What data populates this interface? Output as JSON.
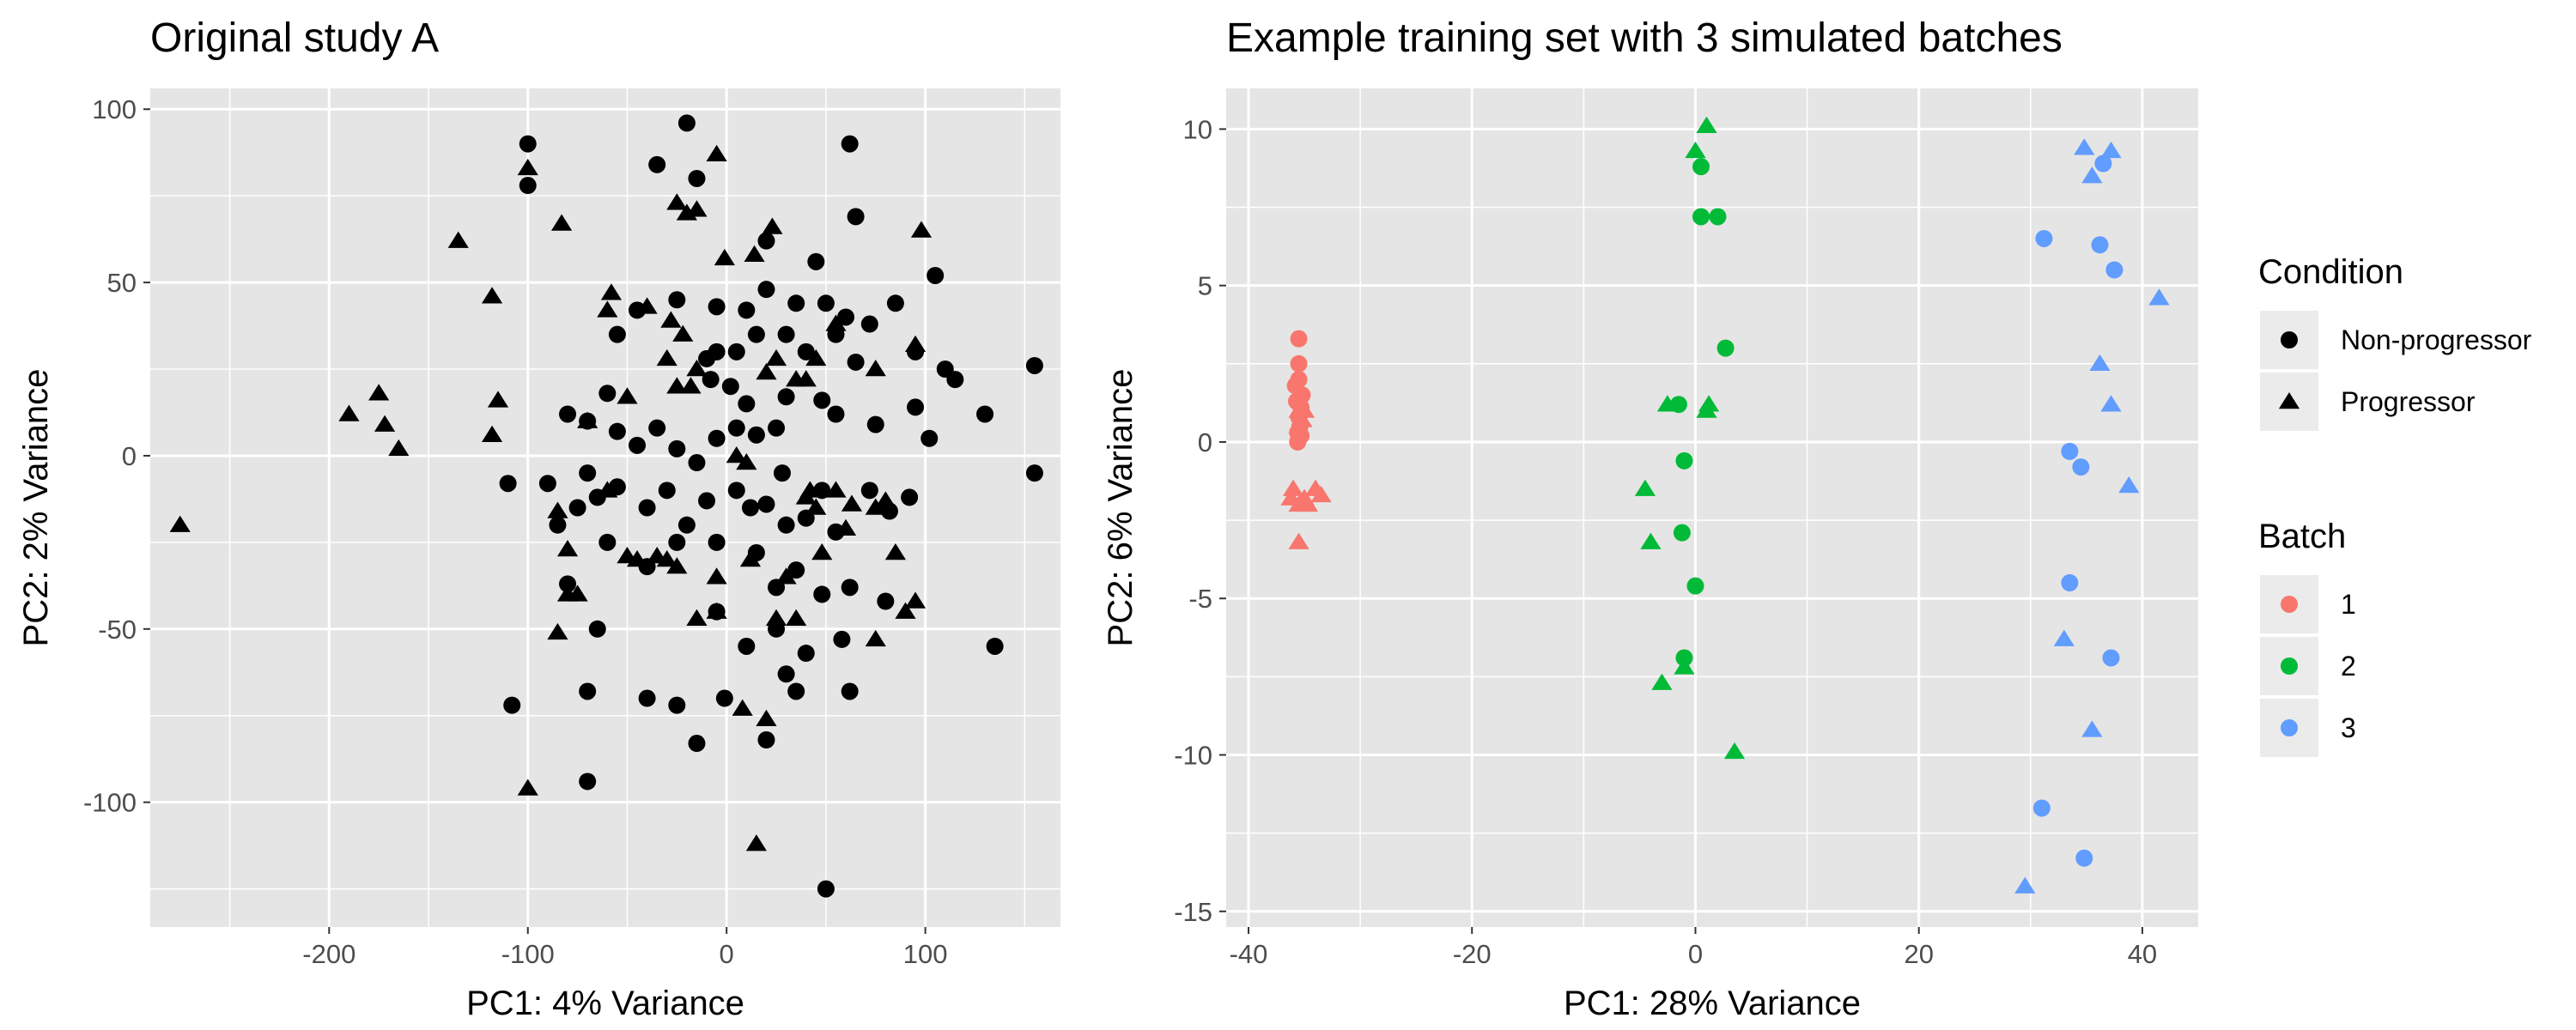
{
  "colors": {
    "panel_bg": "#e5e5e5",
    "grid": "#ffffff",
    "ink": "#000000",
    "axis_text": "#4d4d4d",
    "legend_key_bg": "#ebebeb",
    "batch_1": "#f8766d",
    "batch_2": "#00ba38",
    "batch_3": "#619cff"
  },
  "chart_data": [
    {
      "type": "scatter",
      "title": "Original study A",
      "xlabel": "PC1: 4% Variance",
      "ylabel": "PC2: 2% Variance",
      "xlim": [
        -290,
        168
      ],
      "ylim": [
        -136,
        106
      ],
      "xticks": [
        -200,
        -100,
        0,
        100
      ],
      "xtick_labels": [
        "-200",
        "-100",
        "0",
        "100"
      ],
      "yticks": [
        -100,
        -50,
        0,
        50,
        100
      ],
      "ytick_labels": [
        "-100",
        "-50",
        "0",
        "50",
        "100"
      ],
      "grid": true,
      "series": [
        {
          "shape": "circle",
          "points": [
            [
              -20,
              96
            ],
            [
              -35,
              84
            ],
            [
              -100,
              78
            ],
            [
              62,
              90
            ],
            [
              -15,
              80
            ],
            [
              65,
              69
            ],
            [
              20,
              62
            ],
            [
              45,
              56
            ],
            [
              105,
              52
            ],
            [
              -100,
              90
            ],
            [
              -55,
              35
            ],
            [
              -45,
              42
            ],
            [
              -25,
              45
            ],
            [
              -5,
              43
            ],
            [
              -10,
              28
            ],
            [
              10,
              42
            ],
            [
              20,
              48
            ],
            [
              35,
              44
            ],
            [
              50,
              44
            ],
            [
              60,
              40
            ],
            [
              72,
              38
            ],
            [
              85,
              44
            ],
            [
              15,
              35
            ],
            [
              5,
              30
            ],
            [
              -5,
              30
            ],
            [
              10,
              15
            ],
            [
              2,
              20
            ],
            [
              -8,
              22
            ],
            [
              30,
              35
            ],
            [
              40,
              30
            ],
            [
              55,
              35
            ],
            [
              65,
              27
            ],
            [
              95,
              30
            ],
            [
              110,
              25
            ],
            [
              115,
              22
            ],
            [
              130,
              12
            ],
            [
              155,
              26
            ],
            [
              -60,
              18
            ],
            [
              -70,
              10
            ],
            [
              -80,
              12
            ],
            [
              -55,
              7
            ],
            [
              -45,
              3
            ],
            [
              -35,
              8
            ],
            [
              -25,
              2
            ],
            [
              -15,
              -2
            ],
            [
              -5,
              5
            ],
            [
              5,
              8
            ],
            [
              15,
              6
            ],
            [
              25,
              8
            ],
            [
              30,
              17
            ],
            [
              48,
              16
            ],
            [
              55,
              12
            ],
            [
              75,
              9
            ],
            [
              95,
              14
            ],
            [
              102,
              5
            ],
            [
              -90,
              -8
            ],
            [
              -70,
              -5
            ],
            [
              -65,
              -12
            ],
            [
              -55,
              -9
            ],
            [
              -40,
              -15
            ],
            [
              -30,
              -10
            ],
            [
              -20,
              -20
            ],
            [
              -10,
              -13
            ],
            [
              5,
              -10
            ],
            [
              12,
              -15
            ],
            [
              20,
              -14
            ],
            [
              28,
              -5
            ],
            [
              30,
              -20
            ],
            [
              40,
              -18
            ],
            [
              48,
              -10
            ],
            [
              55,
              -22
            ],
            [
              72,
              -10
            ],
            [
              82,
              -16
            ],
            [
              92,
              -12
            ],
            [
              -110,
              -8
            ],
            [
              -75,
              -15
            ],
            [
              -85,
              -20
            ],
            [
              -60,
              -25
            ],
            [
              -40,
              -32
            ],
            [
              -25,
              -25
            ],
            [
              -5,
              -25
            ],
            [
              15,
              -28
            ],
            [
              25,
              -38
            ],
            [
              35,
              -33
            ],
            [
              48,
              -40
            ],
            [
              62,
              -38
            ],
            [
              80,
              -42
            ],
            [
              -80,
              -37
            ],
            [
              -65,
              -50
            ],
            [
              -5,
              -45
            ],
            [
              10,
              -55
            ],
            [
              25,
              -50
            ],
            [
              40,
              -57
            ],
            [
              58,
              -53
            ],
            [
              -70,
              -68
            ],
            [
              -40,
              -70
            ],
            [
              -25,
              -72
            ],
            [
              -1,
              -70
            ],
            [
              30,
              -63
            ],
            [
              35,
              -68
            ],
            [
              62,
              -68
            ],
            [
              -108,
              -72
            ],
            [
              -70,
              -94
            ],
            [
              -15,
              -83
            ],
            [
              20,
              -82
            ],
            [
              50,
              -125
            ],
            [
              135,
              -55
            ],
            [
              155,
              -5
            ]
          ]
        },
        {
          "shape": "triangle",
          "points": [
            [
              -275,
              -20
            ],
            [
              -190,
              12
            ],
            [
              -175,
              18
            ],
            [
              -172,
              9
            ],
            [
              -165,
              2
            ],
            [
              -135,
              62
            ],
            [
              -118,
              46
            ],
            [
              -115,
              16
            ],
            [
              -118,
              6
            ],
            [
              -100,
              83
            ],
            [
              -83,
              67
            ],
            [
              -60,
              42
            ],
            [
              -58,
              47
            ],
            [
              -40,
              43
            ],
            [
              -28,
              39
            ],
            [
              -22,
              35
            ],
            [
              -25,
              73
            ],
            [
              -20,
              70
            ],
            [
              -15,
              71
            ],
            [
              -5,
              87
            ],
            [
              -1,
              57
            ],
            [
              23,
              66
            ],
            [
              14,
              58
            ],
            [
              20,
              24
            ],
            [
              25,
              28
            ],
            [
              35,
              22
            ],
            [
              40,
              22
            ],
            [
              45,
              28
            ],
            [
              55,
              38
            ],
            [
              75,
              25
            ],
            [
              98,
              65
            ],
            [
              95,
              32
            ],
            [
              -30,
              28
            ],
            [
              -25,
              20
            ],
            [
              -18,
              20
            ],
            [
              -15,
              25
            ],
            [
              -50,
              17
            ],
            [
              -70,
              10
            ],
            [
              -85,
              -16
            ],
            [
              -80,
              -27
            ],
            [
              -75,
              -40
            ],
            [
              -50,
              -29
            ],
            [
              -45,
              -30
            ],
            [
              -30,
              -30
            ],
            [
              -5,
              -35
            ],
            [
              12,
              -30
            ],
            [
              42,
              -10
            ],
            [
              85,
              -28
            ],
            [
              95,
              -42
            ],
            [
              -80,
              -40
            ],
            [
              -85,
              -51
            ],
            [
              -15,
              -47
            ],
            [
              -5,
              -45
            ],
            [
              25,
              -47
            ],
            [
              35,
              -47
            ],
            [
              48,
              -28
            ],
            [
              75,
              -53
            ],
            [
              -100,
              -96
            ],
            [
              8,
              -73
            ],
            [
              20,
              -76
            ],
            [
              15,
              -112
            ],
            [
              -35,
              -29
            ],
            [
              -25,
              -32
            ],
            [
              5,
              0
            ],
            [
              10,
              -2
            ],
            [
              30,
              -35
            ],
            [
              40,
              -12
            ],
            [
              45,
              -15
            ],
            [
              60,
              -21
            ],
            [
              63,
              -14
            ],
            [
              55,
              -10
            ],
            [
              80,
              -13
            ],
            [
              75,
              -15
            ],
            [
              90,
              -45
            ],
            [
              -60,
              -10
            ]
          ]
        }
      ]
    },
    {
      "type": "scatter",
      "title": "Example training set with 3 simulated batches",
      "xlabel": "PC1: 28% Variance",
      "ylabel": "PC2: 6% Variance",
      "xlim": [
        -42,
        45
      ],
      "ylim": [
        -15.5,
        11.3
      ],
      "xticks": [
        -40,
        -20,
        0,
        20,
        40
      ],
      "xtick_labels": [
        "-40",
        "-20",
        "0",
        "20",
        "40"
      ],
      "yticks": [
        -15,
        -10,
        -5,
        0,
        5,
        10
      ],
      "ytick_labels": [
        "-15",
        "-10",
        "-5",
        "0",
        "5",
        "10"
      ],
      "grid": true,
      "legend_position": "right",
      "legends": [
        {
          "title": "Condition",
          "items": [
            {
              "label": "Non-progressor",
              "shape": "circle"
            },
            {
              "label": "Progressor",
              "shape": "triangle"
            }
          ]
        },
        {
          "title": "Batch",
          "items": [
            {
              "label": "1",
              "color": "#f8766d"
            },
            {
              "label": "2",
              "color": "#00ba38"
            },
            {
              "label": "3",
              "color": "#619cff"
            }
          ]
        }
      ],
      "series": [
        {
          "batch": "1",
          "shape": "circle",
          "points": [
            [
              -35.5,
              3.3
            ],
            [
              -35.5,
              2.5
            ],
            [
              -35.5,
              2.0
            ],
            [
              -35.8,
              1.8
            ],
            [
              -35.2,
              1.5
            ],
            [
              -35.7,
              1.3
            ],
            [
              -35.3,
              1.1
            ],
            [
              -35.5,
              0.8
            ],
            [
              -35.4,
              0.5
            ],
            [
              -35.6,
              0.3
            ],
            [
              -35.3,
              0.2
            ],
            [
              -35.6,
              0.0
            ]
          ]
        },
        {
          "batch": "1",
          "shape": "triangle",
          "points": [
            [
              -35.5,
              1.0
            ],
            [
              -35.0,
              1.0
            ],
            [
              -35.2,
              0.7
            ],
            [
              -35.5,
              0.5
            ],
            [
              -36.0,
              -1.5
            ],
            [
              -34.0,
              -1.5
            ],
            [
              -33.5,
              -1.7
            ],
            [
              -35.0,
              -1.8
            ],
            [
              -36.2,
              -1.8
            ],
            [
              -35.5,
              -2.0
            ],
            [
              -34.7,
              -2.0
            ],
            [
              -35.5,
              -3.2
            ]
          ]
        },
        {
          "batch": "2",
          "shape": "circle",
          "points": [
            [
              0.5,
              8.8
            ],
            [
              0.5,
              7.2
            ],
            [
              2.0,
              7.2
            ],
            [
              2.7,
              3.0
            ],
            [
              -1.5,
              1.2
            ],
            [
              -1.0,
              -0.6
            ],
            [
              -1.2,
              -2.9
            ],
            [
              0.0,
              -4.6
            ],
            [
              -1.0,
              -6.9
            ]
          ]
        },
        {
          "batch": "2",
          "shape": "triangle",
          "points": [
            [
              1.0,
              10.1
            ],
            [
              0.0,
              9.3
            ],
            [
              -2.5,
              1.2
            ],
            [
              1.2,
              1.2
            ],
            [
              1.0,
              1.0
            ],
            [
              -4.5,
              -1.5
            ],
            [
              -4.0,
              -3.2
            ],
            [
              -1.0,
              -7.2
            ],
            [
              -3.0,
              -7.7
            ],
            [
              3.5,
              -9.9
            ]
          ]
        },
        {
          "batch": "3",
          "shape": "circle",
          "points": [
            [
              36.5,
              8.9
            ],
            [
              31.2,
              6.5
            ],
            [
              36.2,
              6.3
            ],
            [
              37.5,
              5.5
            ],
            [
              33.5,
              -0.3
            ],
            [
              34.5,
              -0.8
            ],
            [
              33.5,
              -4.5
            ],
            [
              37.2,
              -6.9
            ],
            [
              31.0,
              -11.7
            ],
            [
              34.8,
              -13.3
            ]
          ]
        },
        {
          "batch": "3",
          "shape": "triangle",
          "points": [
            [
              34.8,
              9.4
            ],
            [
              37.2,
              9.3
            ],
            [
              35.5,
              8.5
            ],
            [
              41.5,
              4.6
            ],
            [
              36.2,
              2.5
            ],
            [
              37.2,
              1.2
            ],
            [
              38.8,
              -1.4
            ],
            [
              33.0,
              -6.3
            ],
            [
              35.5,
              -9.2
            ],
            [
              29.5,
              -14.2
            ]
          ]
        }
      ]
    }
  ]
}
